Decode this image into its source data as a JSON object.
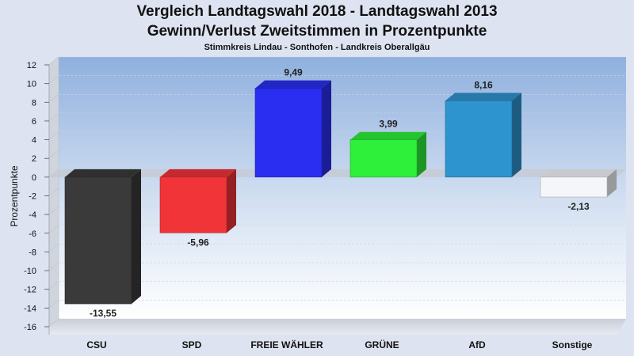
{
  "chart_data": {
    "type": "bar",
    "title": "Vergleich Landtagswahl 2018 - Landtagswahl 2013",
    "subtitle": "Gewinn/Verlust Zweitstimmen in Prozentpunkte",
    "subtitle2": "Stimmkreis Lindau - Sonthofen - Landkreis Oberallgäu",
    "xlabel": "",
    "ylabel": "Prozentpunkte",
    "ylim": [
      -16,
      12
    ],
    "yticks": [
      12,
      10,
      8,
      6,
      4,
      2,
      0,
      -2,
      -4,
      -6,
      -8,
      -10,
      -12,
      -14,
      -16
    ],
    "grid": true,
    "categories": [
      "CSU",
      "SPD",
      "FREIE WÄHLER",
      "GRÜNE",
      "AfD",
      "Sonstige"
    ],
    "values": [
      -13.55,
      -5.96,
      9.49,
      3.99,
      8.16,
      -2.13
    ],
    "value_labels": [
      "-13,55",
      "-5,96",
      "9,49",
      "3,99",
      "8,16",
      "-2,13"
    ],
    "colors": [
      "#3a3a3a",
      "#f03438",
      "#2a2ef0",
      "#2ef03a",
      "#2e94cf",
      "#f4f6fa"
    ]
  }
}
